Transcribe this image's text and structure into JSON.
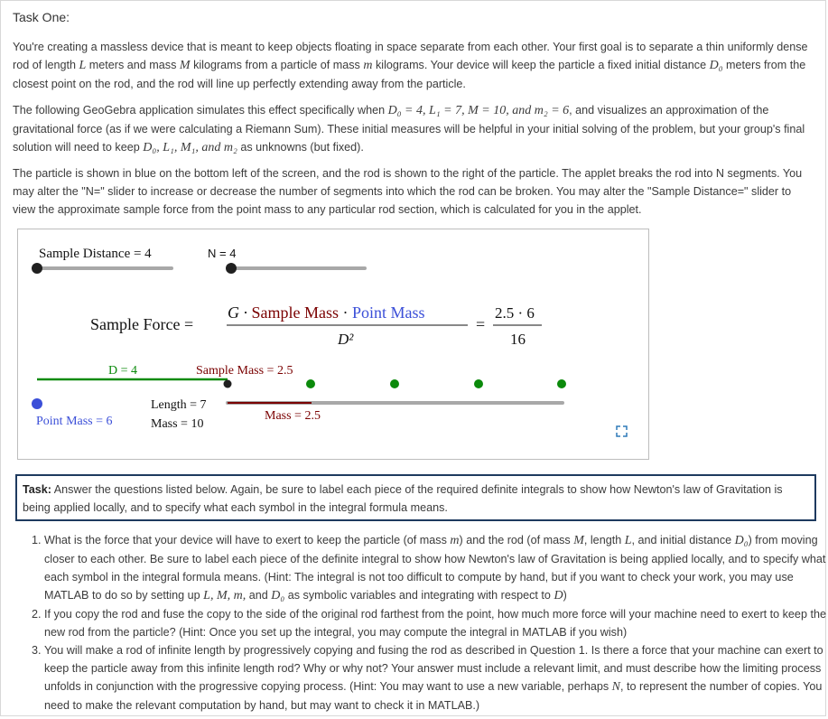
{
  "title": "Task One:",
  "intro": {
    "p1": {
      "t1": "You're creating a massless device that is meant to keep objects floating in space separate from each other. Your first goal is to separate a thin uniformly dense rod of length ",
      "L": "L",
      "t2": " meters and mass ",
      "M": "M",
      "t3": " kilograms from a particle of mass ",
      "m": "m",
      "t4": " kilograms. Your device will keep the particle a fixed initial distance ",
      "D0": "D₀",
      "t5": " meters from the closest point on the rod, and the rod will line up perfectly extending away from the particle."
    },
    "p2": {
      "t1": "The following GeoGebra application simulates this effect specifically when ",
      "eq": "D₀ = 4, L₁ = 7, M = 10, and m₂ = 6",
      "t2": ", and visualizes an approximation of the gravitational force (as if we were calculating a Riemann Sum). These initial measures will be helpful in your initial solving of the problem, but your group's final solution will need to keep ",
      "vars": "D₀, L₁, M₁, and m₂",
      "t3": " as unknowns (but fixed)."
    },
    "p3": "The particle is shown in blue on the bottom left of the screen, and the rod is shown to the right of the particle. The applet breaks the rod into N segments. You may alter the \"N=\" slider to increase or decrease the number of segments into which the rod can be broken. You may alter the \"Sample Distance=\" slider to view the approximate sample force from the point mass to any particular rod section, which is calculated for you in the applet."
  },
  "applet": {
    "sample_distance_label": "Sample Distance = 4",
    "n_label": "N = 4",
    "sample_distance_slider": 0.0,
    "n_slider": 0.0,
    "formula": {
      "lhs": "Sample Force =",
      "G": "G · ",
      "sample_mass": "Sample Mass",
      "dot": " · ",
      "point_mass": "Point Mass",
      "denominator": "D²",
      "equals": "=",
      "num_value": "2.5 · 6",
      "den_value": "16"
    },
    "d_label": "D = 4",
    "sample_mass_label": "Sample Mass = 2.5",
    "length_label": "Length = 7",
    "mass_label": "Mass = 10",
    "segment_mass_label": "Mass = 2.5",
    "point_mass_label": "Point Mass = 6",
    "colors": {
      "blue": "#3b4fd8",
      "green": "#0b8a0b",
      "dark_red": "#7a0000",
      "gray": "#a8a8a8",
      "dark": "#202020"
    }
  },
  "task": {
    "bold": "Task:",
    "text": " Answer the questions listed below. Again, be sure to label each piece of the required definite integrals to show how Newton's law of Gravitation is being applied locally, and to specify what each symbol in the integral formula means."
  },
  "questions": [
    {
      "a": "What is the force that your device will have to exert to keep the particle (of mass ",
      "m": "m",
      "b": ") and the rod (of mass ",
      "M": "M",
      "c": ", length ",
      "L": "L",
      "d": ", and initial distance ",
      "D0": "D₀",
      "e": ") from moving closer to each other. Be sure to label each piece of the definite integral to show how Newton's law of Gravitation is being applied locally, and to specify what each symbol in the integral formula means. (Hint: The integral is not too difficult to compute by hand, but if you want to check your work, you may use MATLAB to do so by setting up ",
      "vars": "L, M, m,",
      "f": " and ",
      "D0b": "D₀",
      "g": " as symbolic variables and integrating with respect to ",
      "D": "D",
      "h": ")"
    },
    {
      "text": "If you copy the rod and fuse the copy to the side of the original rod farthest from the point, how much more force will your machine need to exert to keep the new rod from the particle? (Hint: Once you set up the integral, you may compute the integral in MATLAB if you wish)"
    },
    {
      "a": "You will make a rod of infinite length by progressively copying and fusing the rod as described in Question 1. Is there a force that your machine can exert to keep the particle away from this infinite length rod? Why or why not? Your answer must include a relevant limit, and must describe how the limiting process unfolds in conjunction with the progressive copying process. (Hint: You may want to use a new variable, perhaps ",
      "N": "N",
      "b": ", to represent the number of copies. You need to make the relevant computation by hand, but may want to check it in MATLAB.)"
    }
  ]
}
